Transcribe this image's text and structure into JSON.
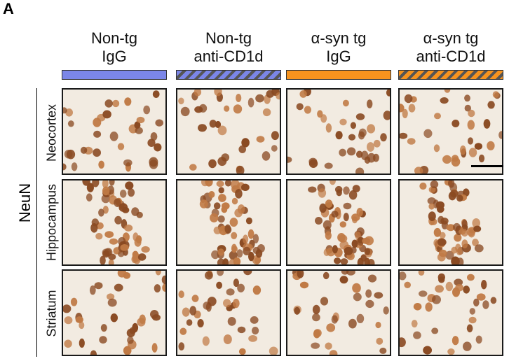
{
  "panel_letter": "A",
  "stain": "NeuN",
  "columns": [
    {
      "line1": "Non-tg",
      "line2": "IgG",
      "bar_color": "#7b86e8",
      "striped": false
    },
    {
      "line1": "Non-tg",
      "line2": "anti-CD1d",
      "bar_color": "#7b86e8",
      "striped": true
    },
    {
      "line1": "α-syn tg",
      "line2": "IgG",
      "bar_color": "#f7931e",
      "striped": false
    },
    {
      "line1": "α-syn tg",
      "line2": "anti-CD1d",
      "bar_color": "#f7931e",
      "striped": true
    }
  ],
  "rows": [
    {
      "label": "Neocortex"
    },
    {
      "label": "Hippocampus"
    },
    {
      "label": "Striatum"
    }
  ],
  "colors": {
    "tissue_background": "#f2ebe1",
    "nucleus_dark": "#8a4a22",
    "nucleus_light": "#c07a45",
    "stripe": "#555555"
  }
}
